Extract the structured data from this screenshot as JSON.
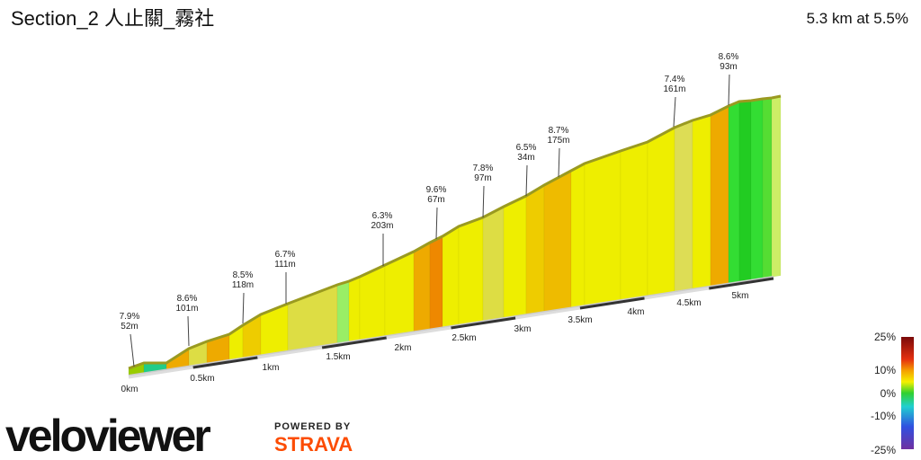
{
  "header": {
    "title": "Section_2 人止關_霧社",
    "summary": "5.3 km at 5.5%"
  },
  "annotations": [
    {
      "grade": "7.9%",
      "length": "52m"
    },
    {
      "grade": "8.6%",
      "length": "101m"
    },
    {
      "grade": "8.5%",
      "length": "118m"
    },
    {
      "grade": "6.7%",
      "length": "111m"
    },
    {
      "grade": "6.3%",
      "length": "203m"
    },
    {
      "grade": "9.6%",
      "length": "67m"
    },
    {
      "grade": "7.8%",
      "length": "97m"
    },
    {
      "grade": "6.5%",
      "length": "34m"
    },
    {
      "grade": "8.7%",
      "length": "175m"
    },
    {
      "grade": "7.4%",
      "length": "161m"
    },
    {
      "grade": "8.6%",
      "length": "93m"
    }
  ],
  "distance_labels": [
    "0km",
    "0.5km",
    "1km",
    "1.5km",
    "2km",
    "2.5km",
    "3km",
    "3.5km",
    "4km",
    "4.5km",
    "5km"
  ],
  "legend": {
    "labels": [
      "25%",
      "10%",
      "0%",
      "-10%",
      "-25%"
    ]
  },
  "branding": {
    "logo": "veloviewer",
    "powered_by": "POWERED BY",
    "strava": "STRAVA"
  }
}
